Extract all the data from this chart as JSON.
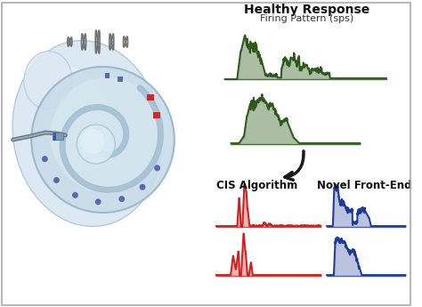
{
  "title": "Healthy Response",
  "subtitle": "Firing Pattern (sps)",
  "label_cis": "CIS Algorithm",
  "label_novel": "Novel Front-End",
  "bg_color": "#ffffff",
  "border_color": "#aaaaaa",
  "green_dark": "#2d5a1b",
  "green_mid": "#4a8c30",
  "green_light": "#8ec46a",
  "red_dark": "#aa0000",
  "red_mid": "#cc2222",
  "red_light": "#ff8888",
  "blue_dark": "#0a1a6a",
  "blue_mid": "#1e3a9e",
  "blue_light": "#7090d0",
  "cochlea_blue1": "#c5d9ea",
  "cochlea_blue2": "#a8c4dc",
  "cochlea_dark": "#7a9db8",
  "cochlea_spiral": "#8aafc8",
  "electrode_red": "#cc2222",
  "electrode_blue": "#4455aa",
  "arrow_color": "#1a1a1a",
  "text_color": "#111111",
  "figsize": [
    4.74,
    3.45
  ],
  "dpi": 100
}
